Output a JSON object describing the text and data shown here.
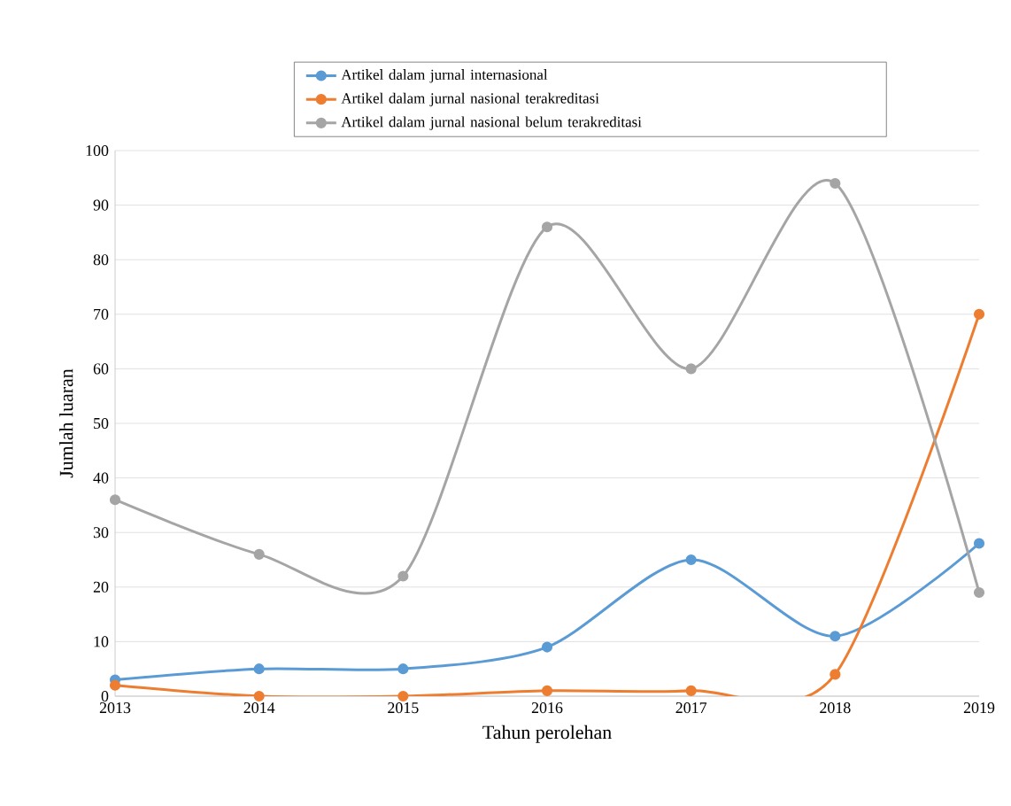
{
  "chart_data": {
    "type": "line",
    "xlabel": "Tahun perolehan",
    "ylabel": "Jumlah luaran",
    "x": [
      2013,
      2014,
      2015,
      2016,
      2017,
      2018,
      2019
    ],
    "series": [
      {
        "name": "Artikel dalam jurnal internasional",
        "color": "#5b9bd5",
        "values": [
          3,
          5,
          5,
          9,
          25,
          11,
          28
        ]
      },
      {
        "name": "Artikel dalam jurnal nasional terakreditasi",
        "color": "#ed7d31",
        "values": [
          2,
          0,
          0,
          1,
          1,
          4,
          70
        ]
      },
      {
        "name": "Artikel dalam jurnal nasional belum terakreditasi",
        "color": "#a5a5a5",
        "values": [
          36,
          26,
          22,
          86,
          60,
          94,
          19
        ]
      }
    ],
    "xlim": [
      2013,
      2019
    ],
    "xticks": [
      2013,
      2014,
      2015,
      2016,
      2017,
      2018,
      2019
    ],
    "ylim": [
      0,
      100
    ],
    "yticks": [
      0,
      10,
      20,
      30,
      40,
      50,
      60,
      70,
      80,
      90,
      100
    ],
    "grid": "y",
    "legend": "top",
    "marker": "circle",
    "line_style": "solid"
  }
}
